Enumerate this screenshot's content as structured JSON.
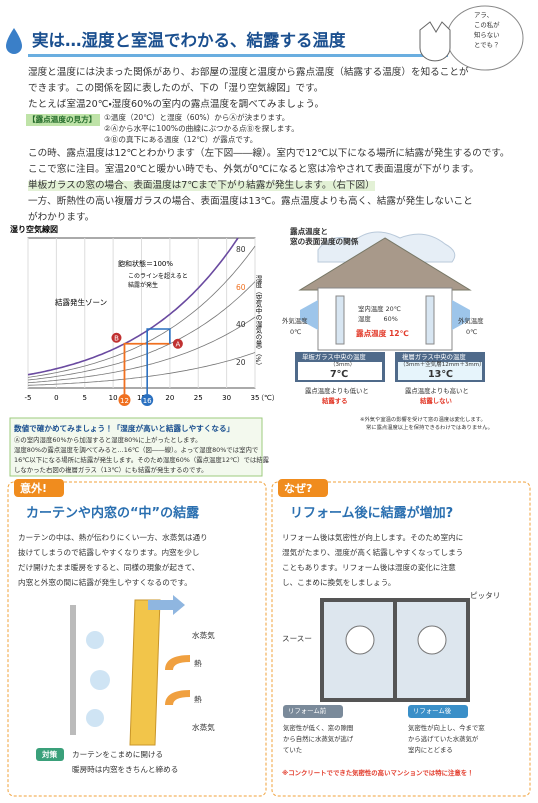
{
  "header": {
    "title": "実は…湿度と室温でわかる、結露する温度",
    "bubble": [
      "アラ、",
      "この私が",
      "知らない",
      "とでも？"
    ]
  },
  "intro": {
    "lines": [
      "湿度と温度には決まった関係があり、お部屋の湿度と温度から露点温度（結露する温度）を知ることが",
      "できます。この関係を図に表したのが、下の「湿り空気線図」です。",
      "たとえば室温20℃・湿度60%の室内の露点温度を調べてみましょう。"
    ]
  },
  "method": {
    "label": "【露点温度の見方】",
    "steps": [
      "①温度（20℃）と湿度（60%）からⒶが決まります。",
      "②Ⓐから水平に100%の曲線にぶつかる点Ⓑを探します。",
      "③Ⓑの真下にある温度（12℃）が露点です。"
    ]
  },
  "body": {
    "lines": [
      "この時、露点温度は12℃とわかります（左下図――線）。室内で12℃以下になる場所に結露が発生するのです。",
      "ここで窓に注目。室温20℃と暖かい時でも、外気が0℃になると窓は冷やされて表面温度が下がります。",
      "単板ガラスの窓の場合、表面温度は7℃まで下がり結露が発生します。（右下図）",
      "一方、断熱性の高い複層ガラスの場合、表面温度は13℃。露点温度よりも高く、結露が発生しないこと",
      "がわかります。"
    ]
  },
  "chart": {
    "title": "湿り空気線図",
    "xticks": [
      -5,
      0,
      5,
      10,
      15,
      20,
      25,
      30,
      35
    ],
    "x_unit": "（℃）",
    "rh_labels": [
      80,
      60,
      40,
      20
    ],
    "y_label": "湿度（空気中の湿気の量）（%）",
    "saturation": "飽和状態＝100%",
    "line_note": [
      "このラインを超えると",
      "結露が発生"
    ],
    "zone": "結露発生ゾーン",
    "point_a": "A",
    "point_b": "B",
    "dew_60": 12,
    "dew_80": 16
  },
  "note": {
    "title": "数値で確かめてみましょう！「湿度が高いと結露しやすくなる」",
    "lines": [
      "Ⓐの室内湿度60%から加湿すると湿度80%に上がったとします。",
      "湿度80%の露点温度を調べてみると…16℃（図――線）。よって湿度80%では室内で",
      "16℃以下になる場所に結露が発生します。そのため湿度60%（露点温度12℃）では結露",
      "しなかった右図の複層ガラス（13℃）にも結露が発生するのです。"
    ]
  },
  "diagram": {
    "title": [
      "露点温度と",
      "窓の表面温度の関係"
    ],
    "outside_left": [
      "外気温度",
      "0℃"
    ],
    "outside_right": [
      "外気温度",
      "0℃"
    ],
    "room": [
      "室内温度 20℃",
      "湿度　　60%"
    ],
    "dew": "露点温度 12℃",
    "single": {
      "label": "単板ガラス中央の温度",
      "spec": "（3mm）",
      "temp": "7℃",
      "caption": [
        "露点温度よりも低いと",
        "結露する"
      ]
    },
    "double": {
      "label": "複層ガラス中央の温度",
      "spec": "（3mm＋空気層12mm＋3mm）",
      "temp": "13℃",
      "caption": [
        "露点温度よりも高いと",
        "結露しない"
      ]
    },
    "footnote": [
      "※外気や室温の影響を受けて窓の温度は変化します。",
      "常に露点温度以上を保持できるわけではありません。"
    ]
  },
  "left_section": {
    "badge": "意外!",
    "heading": "カーテンや内窓の“中”の結露",
    "lines": [
      "カーテンの中は、熱が伝わりにくい一方、水蒸気は通り",
      "抜けてしまうので結露しやすくなります。内窓を少し",
      "だけ開けたまま暖房をすると、同様の現象が起きて、",
      "内窓と外窓の間に結露が発生しやすくなるのです。"
    ],
    "labels": [
      "水蒸気",
      "熱",
      "熱",
      "水蒸気"
    ],
    "tip_label": "対策",
    "tips": [
      "カーテンをこまめに開ける",
      "暖房時は内窓をきちんと締める"
    ]
  },
  "right_section": {
    "badge": "なぜ?",
    "heading": "リフォーム後に結露が増加?",
    "lines": [
      "リフォーム後は気密性が向上します。そのため室内に",
      "湿気がたまり、湿度が高く結露しやすくなってしまう",
      "こともあります。リフォーム後は湿度の変化に注意",
      "し、こまめに換気をしましょう。"
    ],
    "tight": "ピッタリ",
    "draft": "スースー",
    "before": {
      "label": "リフォーム前",
      "lines": [
        "気密性が低く、窓の隙間",
        "から自然に水蒸気が逃げ",
        "ていた"
      ]
    },
    "after": {
      "label": "リフォーム後",
      "lines": [
        "気密性が向上し、今まで窓",
        "から逃げていた水蒸気が",
        "室内にとどまる"
      ]
    },
    "footer": "※コンクリートでできた気密性の高いマンションでは特に注意を！"
  }
}
